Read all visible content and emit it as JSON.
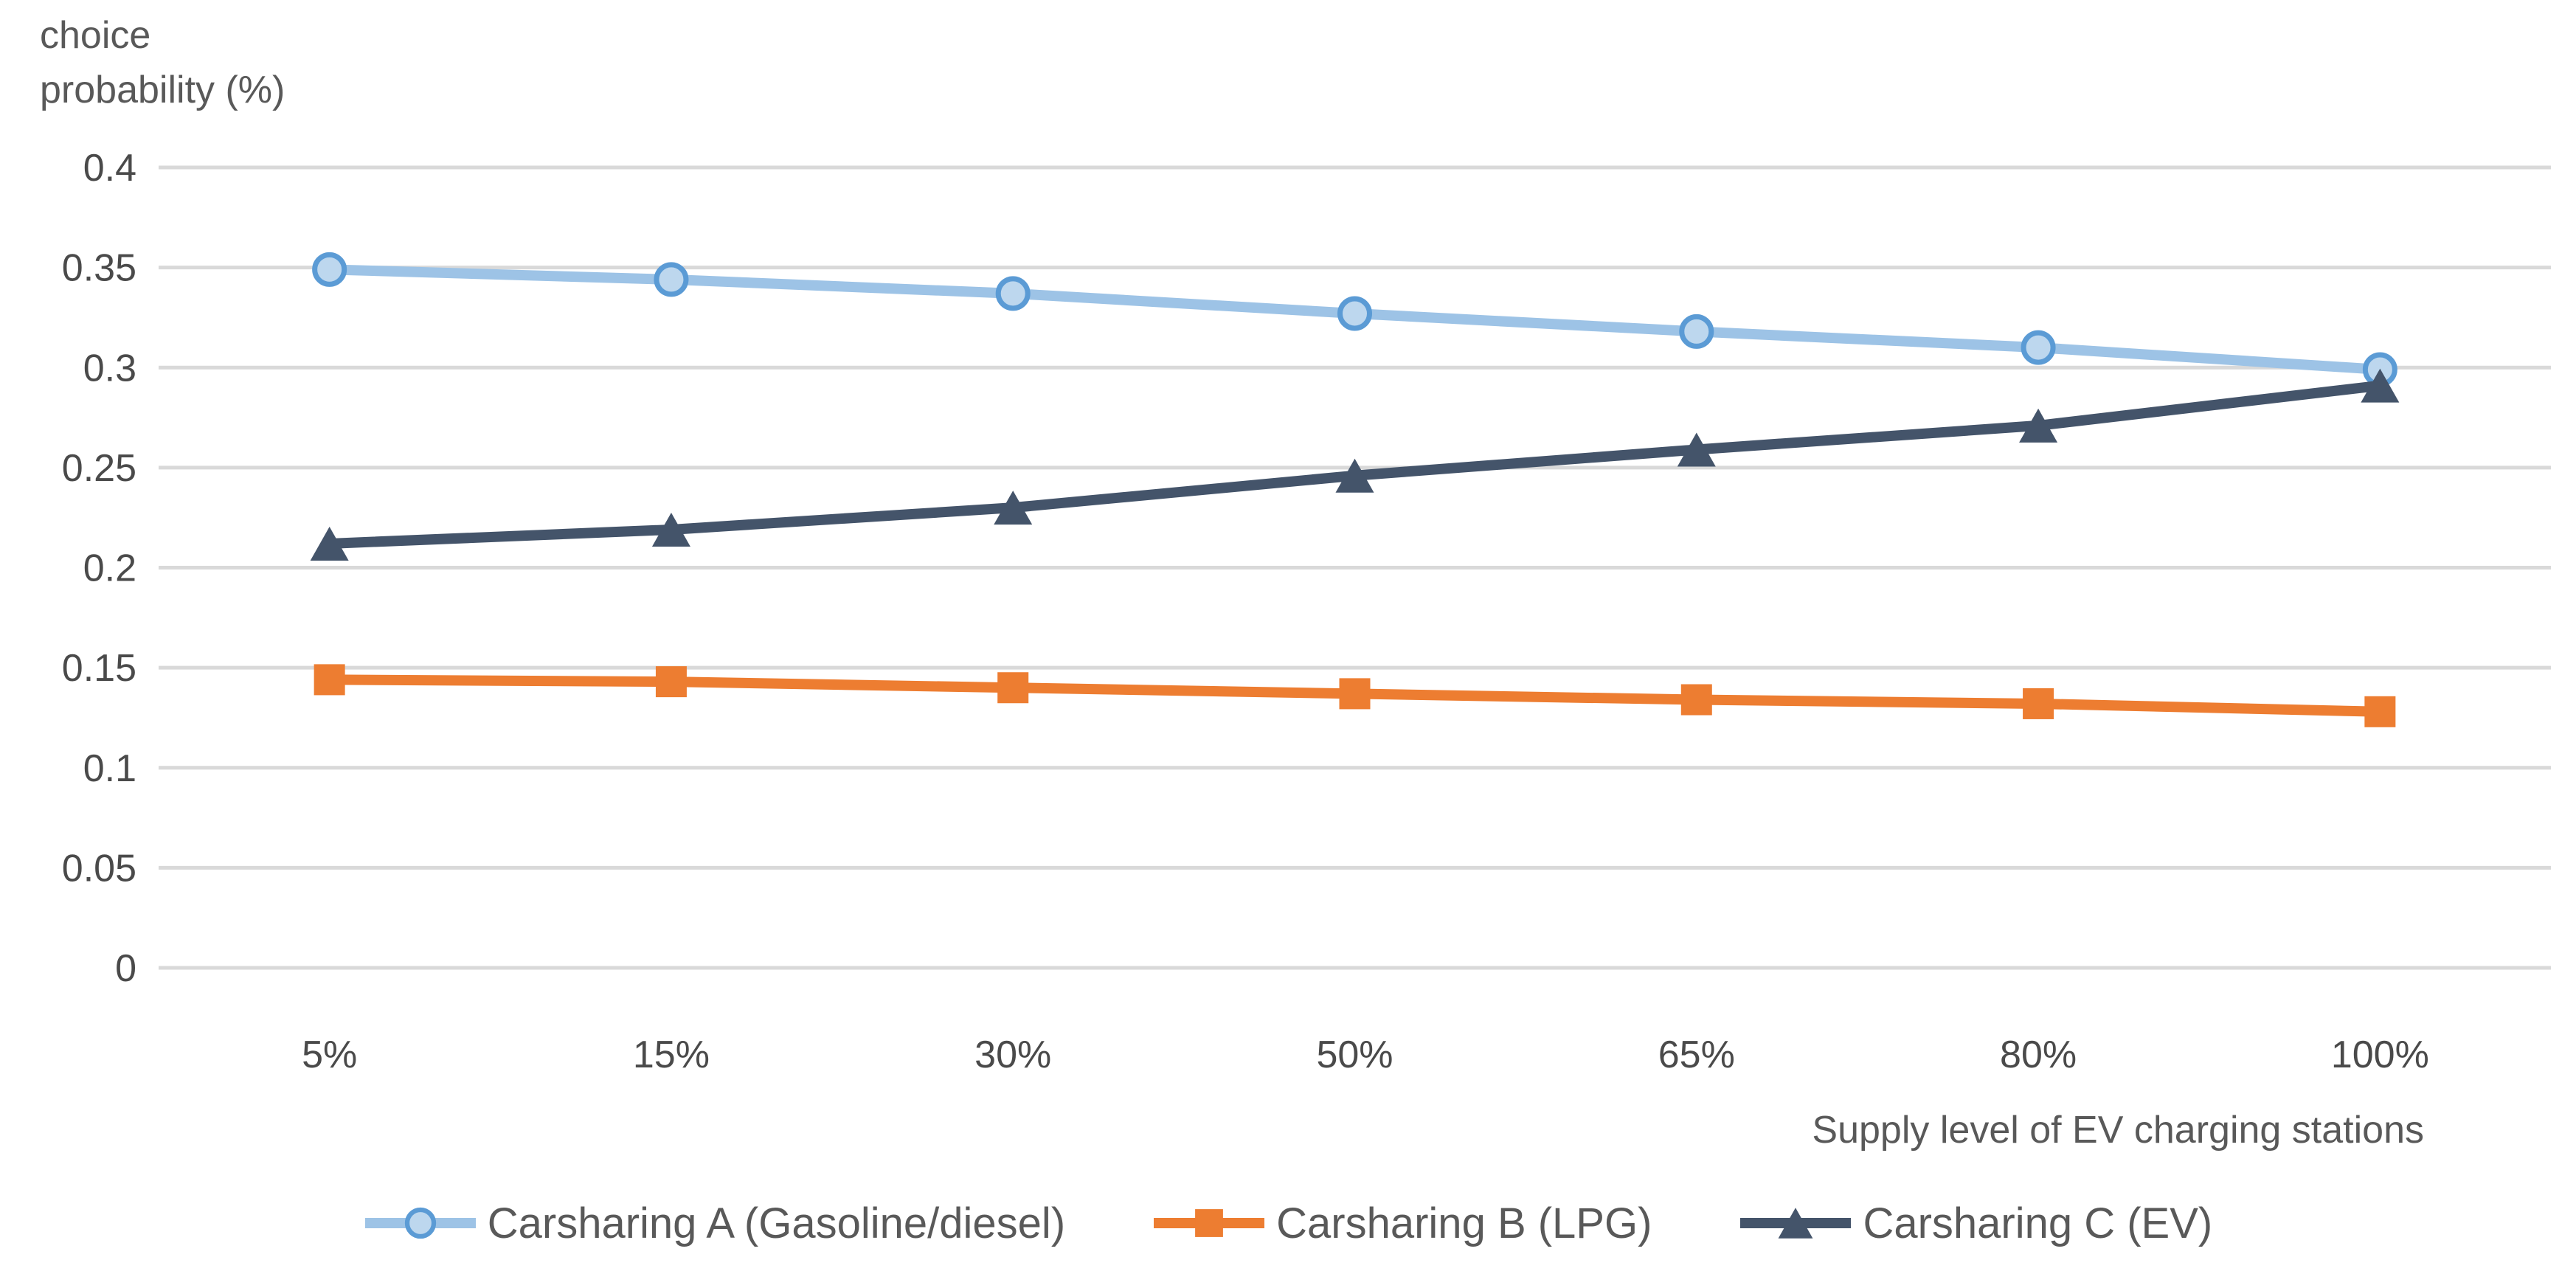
{
  "chart_data": {
    "type": "line",
    "title": "",
    "ylabel": "choice probability (%)",
    "ylabel_lines": [
      "choice",
      "probability (%)"
    ],
    "xlabel": "Supply level of EV charging stations",
    "categories": [
      "5%",
      "15%",
      "30%",
      "50%",
      "65%",
      "80%",
      "100%"
    ],
    "y_ticks": [
      "0.4",
      "0.35",
      "0.3",
      "0.25",
      "0.2",
      "0.15",
      "0.1",
      "0.05",
      "0"
    ],
    "ylim": [
      0,
      0.4
    ],
    "grid": "horizontal",
    "legend_position": "bottom",
    "series": [
      {
        "name": "Carsharing A (Gasoline/diesel)",
        "marker": "circle",
        "line_color": "#9DC3E6",
        "marker_fill": "#BDD7EE",
        "marker_stroke": "#5B9BD5",
        "values": [
          0.349,
          0.344,
          0.337,
          0.327,
          0.318,
          0.31,
          0.299
        ]
      },
      {
        "name": "Carsharing B (LPG)",
        "marker": "square",
        "line_color": "#ED7D31",
        "marker_fill": "#ED7D31",
        "marker_stroke": "#ED7D31",
        "values": [
          0.144,
          0.143,
          0.14,
          0.137,
          0.134,
          0.132,
          0.128
        ]
      },
      {
        "name": "Carsharing C (EV)",
        "marker": "triangle",
        "line_color": "#44546A",
        "marker_fill": "#44546A",
        "marker_stroke": "#44546A",
        "values": [
          0.212,
          0.219,
          0.23,
          0.246,
          0.259,
          0.271,
          0.291
        ]
      }
    ],
    "colors": {
      "gridline": "#D9D9D9",
      "tick_text": "#4a4a4a",
      "axis_title_text": "#595959",
      "legend_text": "#595959"
    }
  }
}
